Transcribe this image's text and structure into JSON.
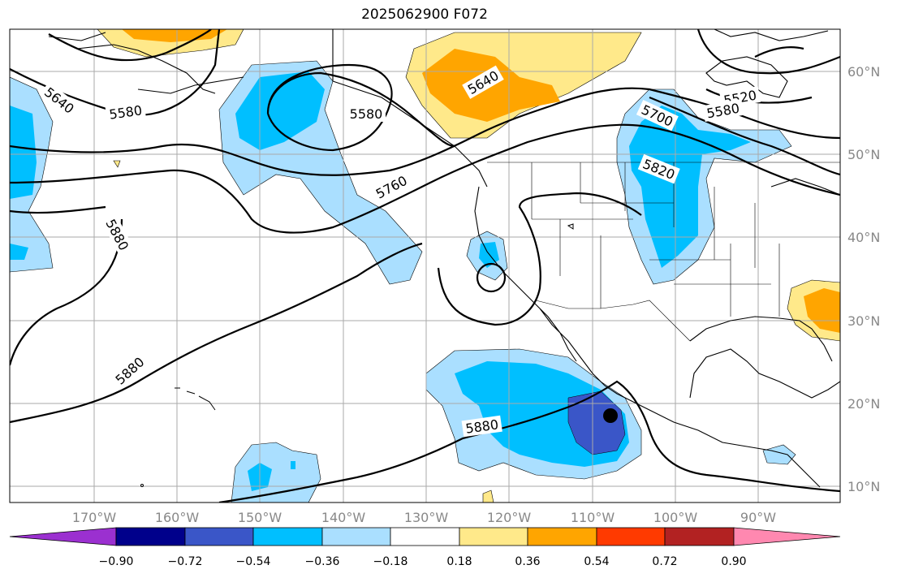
{
  "title": "2025062900 F072",
  "map": {
    "lon_ticks": [
      "170°W",
      "160°W",
      "150°W",
      "140°W",
      "130°W",
      "120°W",
      "110°W",
      "100°W",
      "90°W"
    ],
    "lat_ticks": [
      "60°N",
      "50°N",
      "40°N",
      "30°N",
      "20°N",
      "10°N"
    ],
    "contour_labels": [
      "5640",
      "5580",
      "5580",
      "5640",
      "5700",
      "5520",
      "5580",
      "5820",
      "5760",
      "5880",
      "5880",
      "5880"
    ]
  },
  "colorbar": {
    "labels": [
      "−0.90",
      "−0.72",
      "−0.54",
      "−0.36",
      "−0.18",
      "0.18",
      "0.36",
      "0.54",
      "0.72",
      "0.90"
    ],
    "colors": [
      "#9b30d0",
      "#00008b",
      "#3a56c8",
      "#00bfff",
      "#aadfff",
      "#ffffff",
      "#ffe98a",
      "#ffa500",
      "#ff3a00",
      "#b22222",
      "#ff88b0"
    ]
  }
}
